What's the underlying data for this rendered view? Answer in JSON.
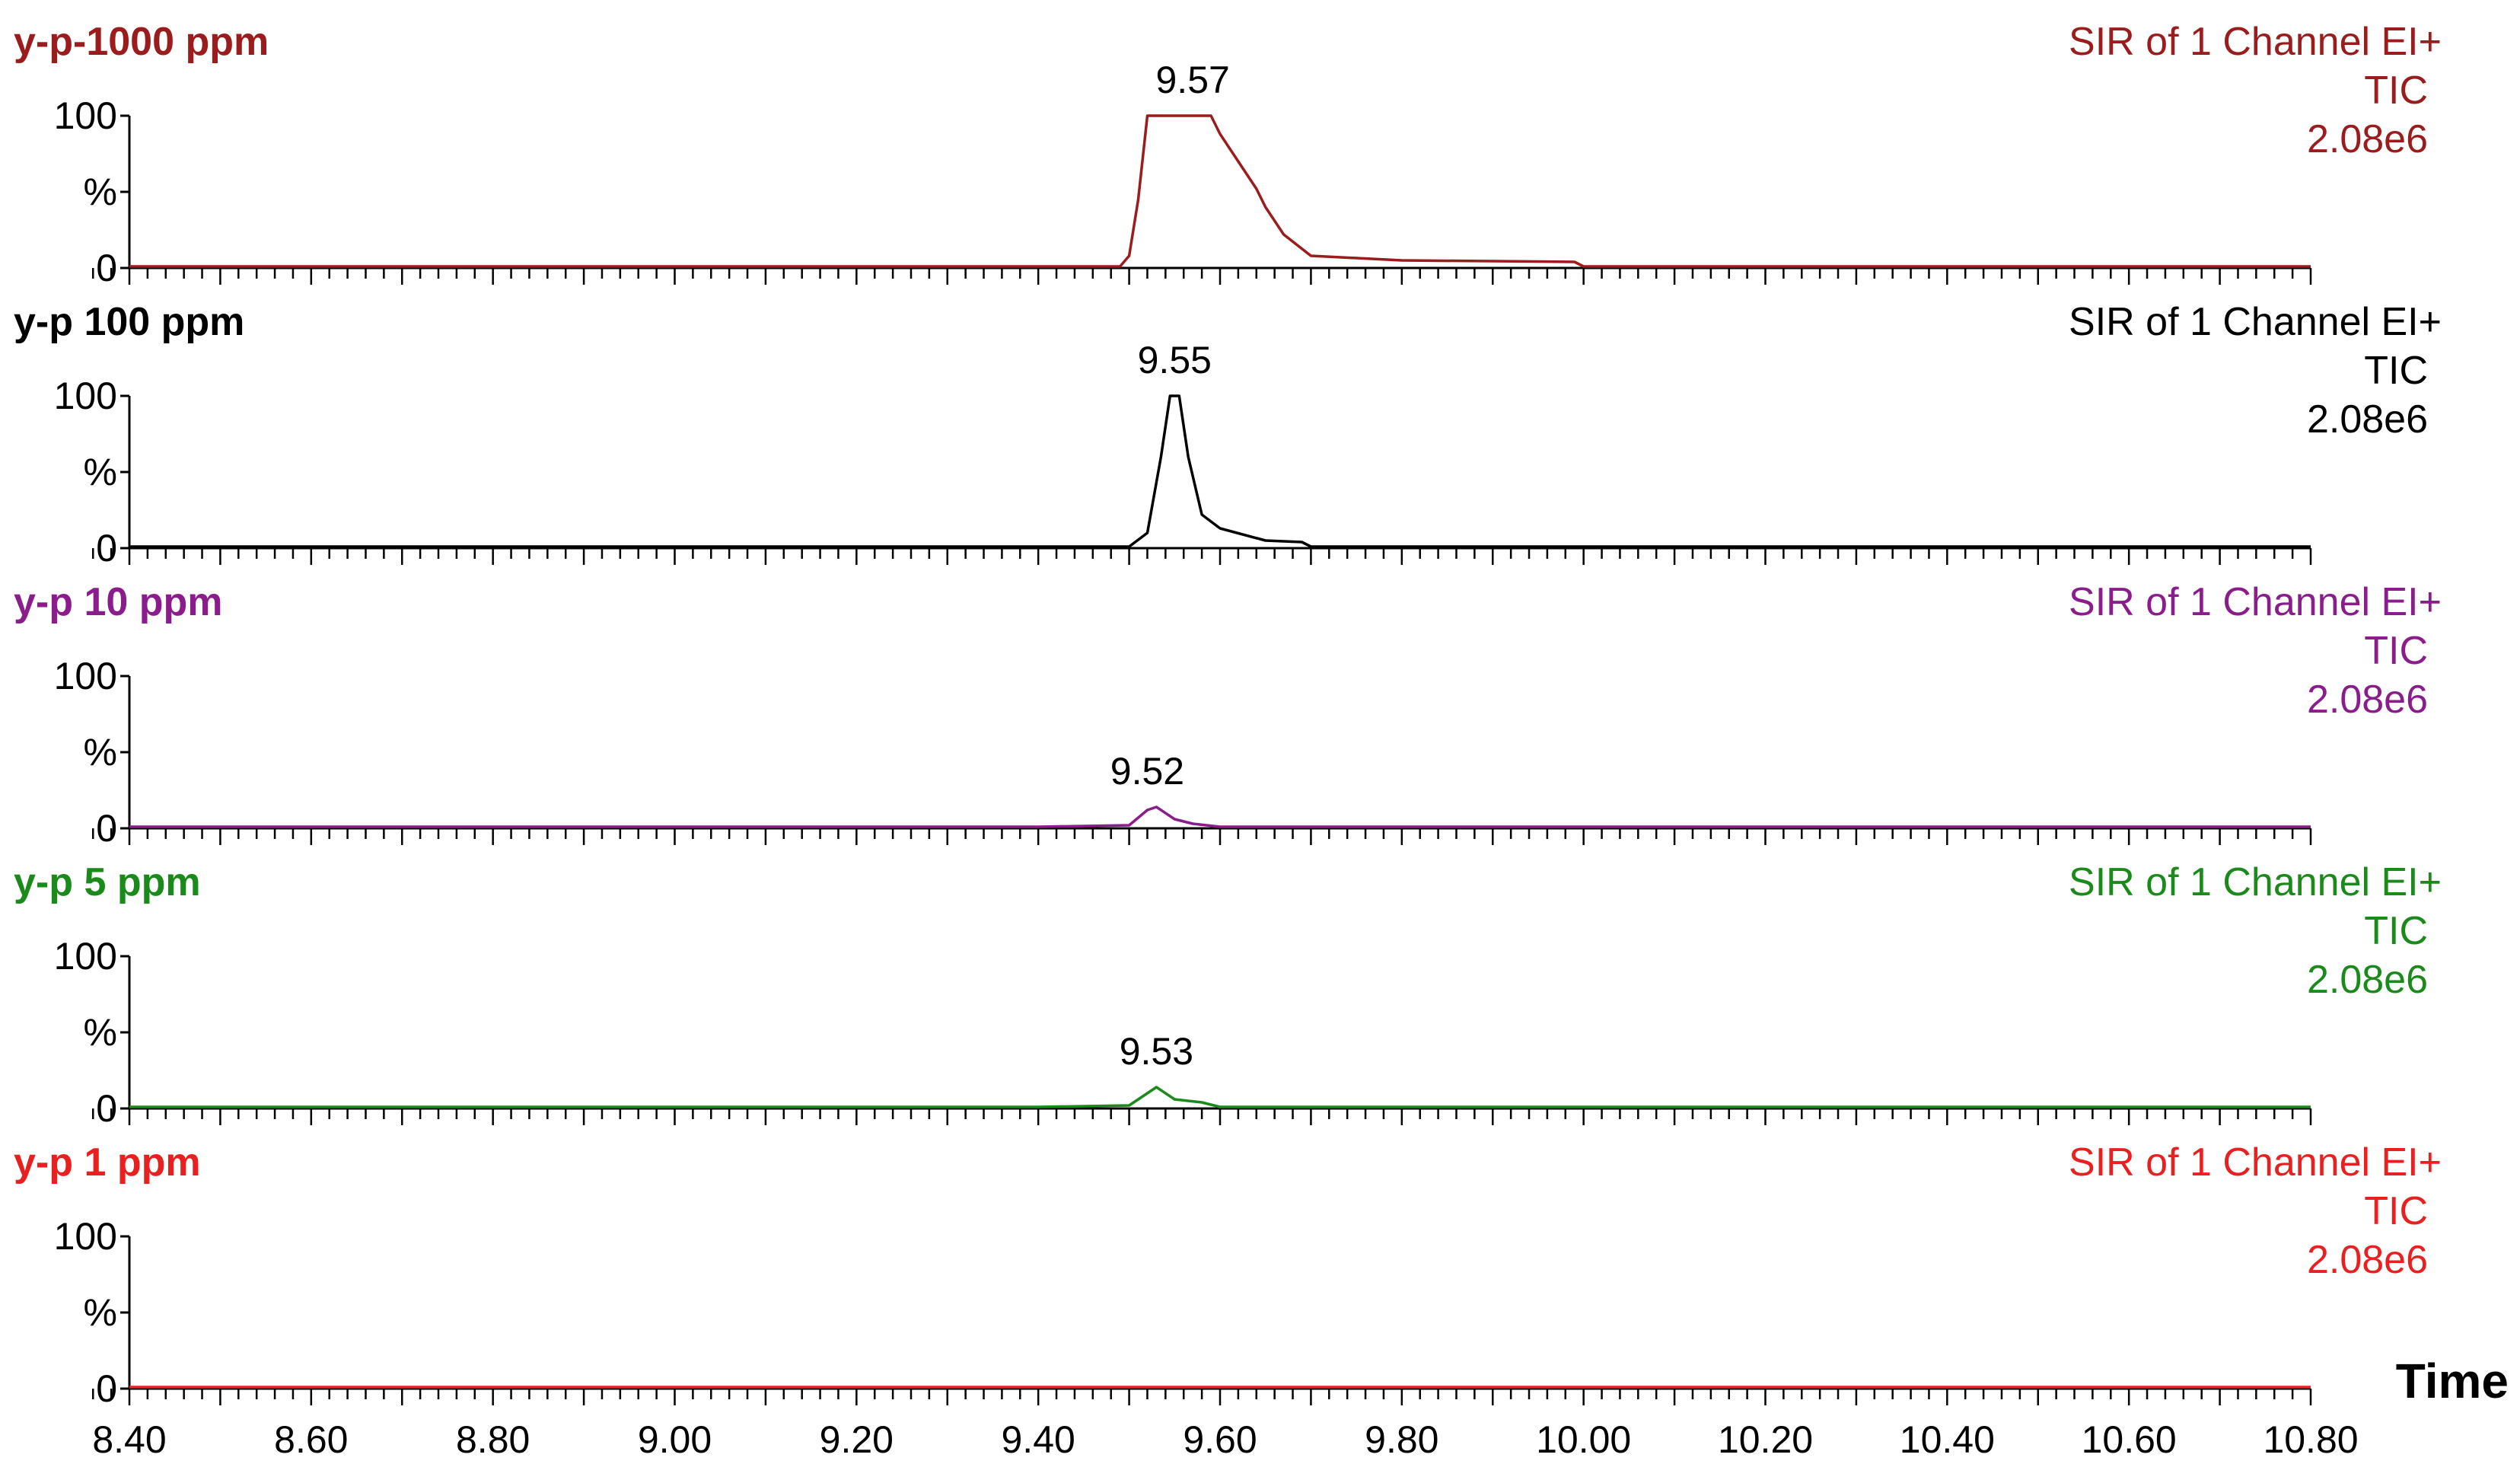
{
  "chart_data": {
    "type": "line",
    "xlim": [
      8.4,
      10.8
    ],
    "x_ticks": [
      "8.40",
      "8.60",
      "8.80",
      "9.00",
      "9.20",
      "9.40",
      "9.60",
      "9.80",
      "10.00",
      "10.20",
      "10.40",
      "10.60",
      "10.80"
    ],
    "xlabel": "Time",
    "y_ticks": [
      "100",
      "%",
      "0"
    ],
    "ylim": [
      0,
      100
    ],
    "panels": [
      {
        "name": "y-p-1000 ppm",
        "color": "#9b1c1c",
        "info": [
          "SIR of 1 Channel EI+",
          "TIC",
          "2.08e6"
        ],
        "peak_label": "9.57",
        "peak_x": 9.57,
        "x": [
          8.4,
          9.3,
          9.49,
          9.5,
          9.51,
          9.52,
          9.53,
          9.56,
          9.59,
          9.6,
          9.62,
          9.64,
          9.65,
          9.67,
          9.7,
          9.8,
          9.99,
          10.0,
          10.8
        ],
        "y": [
          1,
          1,
          1,
          8,
          45,
          100,
          100,
          100,
          100,
          88,
          70,
          52,
          40,
          22,
          8,
          5,
          4,
          1,
          1
        ]
      },
      {
        "name": "y-p 100 ppm",
        "color": "#000000",
        "info": [
          "SIR of 1 Channel EI+",
          "TIC",
          "2.08e6"
        ],
        "peak_label": "9.55",
        "peak_x": 9.55,
        "x": [
          8.4,
          9.3,
          9.5,
          9.52,
          9.535,
          9.545,
          9.555,
          9.565,
          9.58,
          9.6,
          9.65,
          9.69,
          9.7,
          10.8
        ],
        "y": [
          1,
          1,
          1,
          10,
          60,
          100,
          100,
          60,
          22,
          13,
          5,
          4,
          1,
          1
        ]
      },
      {
        "name": "y-p 10 ppm",
        "color": "#8b1c8b",
        "info": [
          "SIR of 1 Channel EI+",
          "TIC",
          "2.08e6"
        ],
        "peak_label": "9.52",
        "peak_x": 9.52,
        "x": [
          8.4,
          9.4,
          9.5,
          9.52,
          9.53,
          9.55,
          9.57,
          9.6,
          10.8
        ],
        "y": [
          1,
          1,
          2,
          12,
          14,
          6,
          3,
          1,
          1
        ]
      },
      {
        "name": "y-p 5 ppm",
        "color": "#1a8a1a",
        "info": [
          "SIR of 1 Channel EI+",
          "TIC",
          "2.08e6"
        ],
        "peak_label": "9.53",
        "peak_x": 9.53,
        "x": [
          8.4,
          9.4,
          9.5,
          9.52,
          9.53,
          9.55,
          9.58,
          9.6,
          10.8
        ],
        "y": [
          1,
          1,
          2,
          10,
          14,
          6,
          4,
          1,
          1
        ]
      },
      {
        "name": "y-p 1 ppm",
        "color": "#e82020",
        "info": [
          "SIR of 1 Channel EI+",
          "TIC",
          "2.08e6"
        ],
        "peak_label": "",
        "x": [
          8.4,
          10.8
        ],
        "y": [
          1,
          1
        ]
      }
    ]
  }
}
